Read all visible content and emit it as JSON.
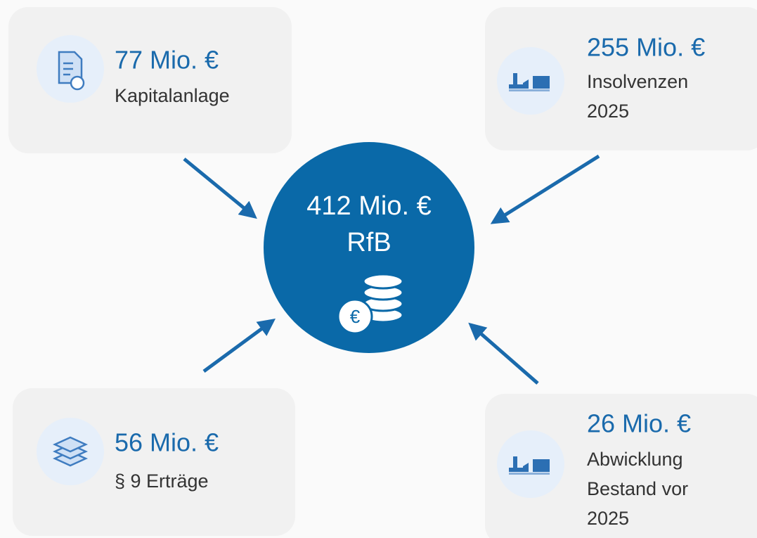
{
  "center": {
    "amount": "412 Mio. €",
    "label": "RfB"
  },
  "nodes": [
    {
      "amount": "77 Mio. €",
      "label": [
        "Kapitalanlage"
      ]
    },
    {
      "amount": "255 Mio. €",
      "label": [
        "Insolvenzen",
        "2025"
      ]
    },
    {
      "amount": "56 Mio. €",
      "label": [
        "§ 9 Erträge"
      ]
    },
    {
      "amount": "26 Mio. €",
      "label": [
        "Abwicklung",
        "Bestand vor",
        "2025"
      ]
    }
  ]
}
